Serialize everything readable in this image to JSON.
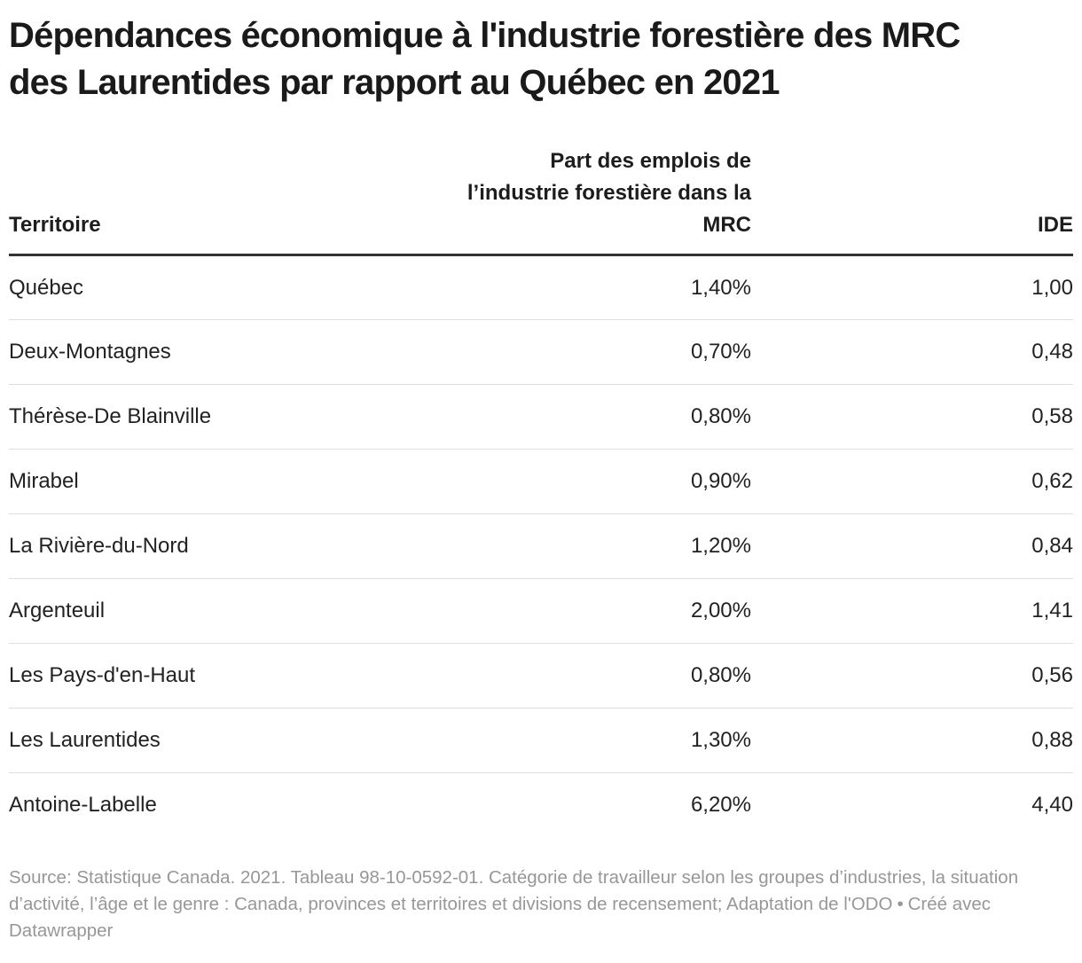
{
  "title": {
    "lines": [
      "Dépendances économique à l'industrie forestière des MRC",
      "des Laurentides par rapport au Québec en 2021"
    ]
  },
  "table": {
    "columns": [
      {
        "label": "Territoire"
      },
      {
        "label": "Part des emplois de l’industrie forestière dans la MRC",
        "lines": [
          "Part des emplois de",
          "l’industrie forestière dans la",
          "MRC"
        ]
      },
      {
        "label": "IDE"
      }
    ],
    "rows": [
      {
        "territoire": "Québec",
        "part_emplois": "1,40%",
        "ide": "1,00"
      },
      {
        "territoire": "Deux-Montagnes",
        "part_emplois": "0,70%",
        "ide": "0,48"
      },
      {
        "territoire": "Thérèse-De Blainville",
        "part_emplois": "0,80%",
        "ide": "0,58"
      },
      {
        "territoire": "Mirabel",
        "part_emplois": "0,90%",
        "ide": "0,62"
      },
      {
        "territoire": "La Rivière-du-Nord",
        "part_emplois": "1,20%",
        "ide": "0,84"
      },
      {
        "territoire": "Argenteuil",
        "part_emplois": "2,00%",
        "ide": "1,41"
      },
      {
        "territoire": "Les Pays-d'en-Haut",
        "part_emplois": "0,80%",
        "ide": "0,56"
      },
      {
        "territoire": "Les Laurentides",
        "part_emplois": "1,30%",
        "ide": "0,88"
      },
      {
        "territoire": "Antoine-Labelle",
        "part_emplois": "6,20%",
        "ide": "4,40"
      }
    ]
  },
  "footer": {
    "source": "Source: Statistique Canada. 2021. Tableau 98-10-0592-01. Catégorie de travailleur selon les groupes d’industries, la situation d’activité, l’âge et le genre : Canada, provinces et territoires et divisions de recensement; Adaptation de l'ODO",
    "separator": "•",
    "created_with": "Créé avec Datawrapper"
  },
  "colors": {
    "background": "#ffffff",
    "title_text": "#1a1a1a",
    "body_text": "#222222",
    "header_rule": "#333333",
    "row_divider": "#dedede",
    "footer_text": "#979797"
  },
  "chart_data": {
    "type": "table",
    "title": "Dépendances économique à l'industrie forestière des MRC des Laurentides par rapport au Québec en 2021",
    "columns": [
      "Territoire",
      "Part des emplois de l’industrie forestière dans la MRC",
      "IDE"
    ],
    "rows": [
      [
        "Québec",
        "1,40%",
        "1,00"
      ],
      [
        "Deux-Montagnes",
        "0,70%",
        "0,48"
      ],
      [
        "Thérèse-De Blainville",
        "0,80%",
        "0,58"
      ],
      [
        "Mirabel",
        "0,90%",
        "0,62"
      ],
      [
        "La Rivière-du-Nord",
        "1,20%",
        "0,84"
      ],
      [
        "Argenteuil",
        "2,00%",
        "1,41"
      ],
      [
        "Les Pays-d'en-Haut",
        "0,80%",
        "0,56"
      ],
      [
        "Les Laurentides",
        "1,30%",
        "0,88"
      ],
      [
        "Antoine-Labelle",
        "6,20%",
        "4,40"
      ]
    ],
    "values": {
      "part_emplois_pct": [
        1.4,
        0.7,
        0.8,
        0.9,
        1.2,
        2.0,
        0.8,
        1.3,
        6.2
      ],
      "ide": [
        1.0,
        0.48,
        0.58,
        0.62,
        0.84,
        1.41,
        0.56,
        0.88,
        4.4
      ]
    },
    "source": "Statistique Canada. 2021. Tableau 98-10-0592-01. Catégorie de travailleur selon les groupes d’industries, la situation d’activité, l’âge et le genre : Canada, provinces et territoires et divisions de recensement; Adaptation de l'ODO"
  }
}
